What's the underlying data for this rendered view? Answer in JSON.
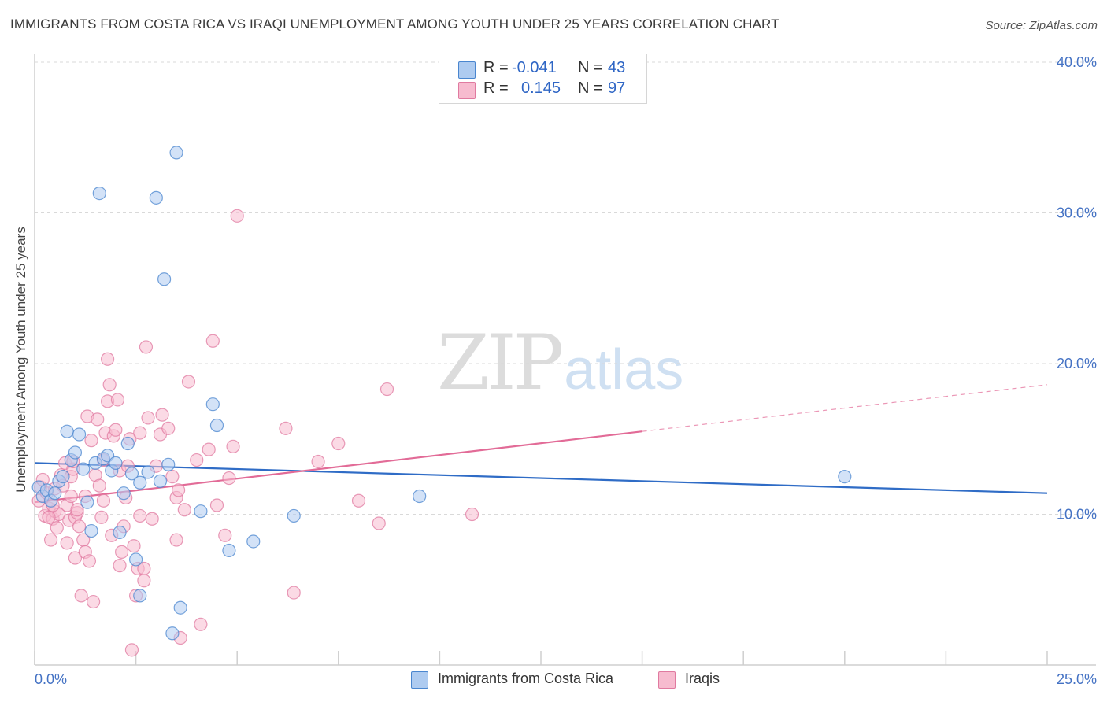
{
  "title": "IMMIGRANTS FROM COSTA RICA VS IRAQI UNEMPLOYMENT AMONG YOUTH UNDER 25 YEARS CORRELATION CHART",
  "source": "Source: ZipAtlas.com",
  "watermark": {
    "zip": "ZIP",
    "atlas": "atlas"
  },
  "colors": {
    "blue_fill": "#aecbf0",
    "blue_stroke": "#4a86cf",
    "blue_line": "#2f6cc6",
    "pink_fill": "#f7bbcf",
    "pink_stroke": "#e07aa0",
    "pink_line": "#e26b97",
    "axis_text": "#4472c4"
  },
  "legend": {
    "rows": [
      {
        "r_label": "R =",
        "r_value": "-0.041",
        "n_label": "N =",
        "n_value": "43"
      },
      {
        "r_label": "R =",
        "r_value": "0.145",
        "n_label": "N =",
        "n_value": "97"
      }
    ]
  },
  "bottom_legend": {
    "series1": "Immigrants from Costa Rica",
    "series2": "Iraqis"
  },
  "chart_data": {
    "type": "scatter",
    "title": "IMMIGRANTS FROM COSTA RICA VS IRAQI UNEMPLOYMENT AMONG YOUTH UNDER 25 YEARS CORRELATION CHART",
    "xlabel": "",
    "ylabel": "Unemployment Among Youth under 25 years",
    "xlim": [
      0,
      25
    ],
    "ylim": [
      0,
      40
    ],
    "x_tick_labels": [
      "0.0%",
      "25.0%"
    ],
    "y_ticks": [
      10,
      20,
      30,
      40
    ],
    "y_tick_labels": [
      "10.0%",
      "20.0%",
      "30.0%",
      "40.0%"
    ],
    "grid": "horizontal dashed",
    "legend_position": "top-center",
    "series": [
      {
        "name": "Immigrants from Costa Rica",
        "color": "#aecbf0",
        "r": -0.041,
        "n": 43,
        "trend": {
          "x0": 0,
          "y0": 13.4,
          "x1": 25,
          "y1": 11.4
        },
        "points": [
          [
            0.1,
            11.8
          ],
          [
            0.2,
            11.2
          ],
          [
            0.3,
            11.6
          ],
          [
            0.4,
            10.9
          ],
          [
            0.5,
            11.4
          ],
          [
            0.6,
            12.2
          ],
          [
            0.7,
            12.5
          ],
          [
            0.8,
            15.5
          ],
          [
            0.9,
            13.6
          ],
          [
            1.0,
            14.1
          ],
          [
            1.1,
            15.3
          ],
          [
            1.2,
            13.0
          ],
          [
            1.3,
            10.8
          ],
          [
            1.4,
            8.9
          ],
          [
            1.5,
            13.4
          ],
          [
            1.6,
            31.3
          ],
          [
            1.7,
            13.7
          ],
          [
            1.8,
            13.9
          ],
          [
            1.9,
            12.9
          ],
          [
            2.0,
            13.4
          ],
          [
            2.1,
            8.8
          ],
          [
            2.2,
            11.4
          ],
          [
            2.3,
            14.7
          ],
          [
            2.4,
            12.7
          ],
          [
            2.5,
            7.0
          ],
          [
            2.6,
            4.6
          ],
          [
            2.6,
            12.1
          ],
          [
            2.8,
            12.8
          ],
          [
            3.0,
            31.0
          ],
          [
            3.2,
            25.6
          ],
          [
            3.3,
            13.3
          ],
          [
            3.4,
            2.1
          ],
          [
            3.5,
            34.0
          ],
          [
            3.6,
            3.8
          ],
          [
            4.1,
            10.2
          ],
          [
            4.4,
            17.3
          ],
          [
            4.5,
            15.9
          ],
          [
            4.8,
            7.6
          ],
          [
            5.4,
            8.2
          ],
          [
            6.4,
            9.9
          ],
          [
            9.5,
            11.2
          ],
          [
            20.0,
            12.5
          ],
          [
            3.1,
            12.2
          ]
        ]
      },
      {
        "name": "Iraqis",
        "color": "#f7bbcf",
        "r": 0.145,
        "n": 97,
        "trend": {
          "x0": 0,
          "y0": 10.8,
          "x1": 15,
          "y1": 15.5,
          "dash_x1": 25,
          "dash_y1": 18.6
        },
        "points": [
          [
            0.1,
            10.9
          ],
          [
            0.15,
            11.8
          ],
          [
            0.2,
            12.3
          ],
          [
            0.25,
            9.9
          ],
          [
            0.3,
            11.4
          ],
          [
            0.35,
            10.4
          ],
          [
            0.4,
            8.3
          ],
          [
            0.45,
            9.7
          ],
          [
            0.5,
            10.2
          ],
          [
            0.5,
            11.7
          ],
          [
            0.55,
            9.1
          ],
          [
            0.6,
            10.0
          ],
          [
            0.65,
            12.6
          ],
          [
            0.7,
            11.9
          ],
          [
            0.75,
            13.4
          ],
          [
            0.8,
            8.1
          ],
          [
            0.8,
            10.6
          ],
          [
            0.85,
            9.6
          ],
          [
            0.9,
            12.5
          ],
          [
            0.9,
            11.2
          ],
          [
            0.95,
            13.0
          ],
          [
            1.0,
            9.8
          ],
          [
            1.0,
            7.1
          ],
          [
            1.05,
            10.1
          ],
          [
            1.1,
            9.2
          ],
          [
            1.15,
            4.6
          ],
          [
            1.2,
            8.3
          ],
          [
            1.25,
            11.2
          ],
          [
            1.25,
            7.5
          ],
          [
            1.3,
            16.5
          ],
          [
            1.35,
            6.9
          ],
          [
            1.4,
            14.9
          ],
          [
            1.45,
            4.2
          ],
          [
            1.5,
            12.6
          ],
          [
            1.55,
            16.3
          ],
          [
            1.6,
            11.9
          ],
          [
            1.65,
            9.8
          ],
          [
            1.7,
            13.6
          ],
          [
            1.7,
            10.9
          ],
          [
            1.75,
            15.4
          ],
          [
            1.8,
            20.3
          ],
          [
            1.8,
            17.5
          ],
          [
            1.85,
            18.6
          ],
          [
            1.9,
            8.6
          ],
          [
            1.95,
            15.2
          ],
          [
            2.0,
            15.6
          ],
          [
            2.05,
            17.6
          ],
          [
            2.1,
            12.9
          ],
          [
            2.1,
            6.6
          ],
          [
            2.15,
            7.5
          ],
          [
            2.2,
            9.2
          ],
          [
            2.25,
            11.1
          ],
          [
            2.3,
            13.2
          ],
          [
            2.35,
            15.0
          ],
          [
            2.4,
            1.0
          ],
          [
            2.45,
            7.9
          ],
          [
            2.5,
            4.6
          ],
          [
            2.55,
            6.4
          ],
          [
            2.6,
            9.9
          ],
          [
            2.6,
            15.4
          ],
          [
            2.7,
            5.6
          ],
          [
            2.7,
            6.4
          ],
          [
            2.75,
            21.1
          ],
          [
            2.8,
            16.4
          ],
          [
            2.9,
            9.7
          ],
          [
            3.0,
            13.2
          ],
          [
            3.1,
            15.3
          ],
          [
            3.15,
            16.6
          ],
          [
            3.3,
            15.7
          ],
          [
            3.4,
            12.5
          ],
          [
            3.5,
            11.1
          ],
          [
            3.5,
            8.3
          ],
          [
            3.55,
            11.6
          ],
          [
            3.6,
            1.8
          ],
          [
            3.7,
            10.3
          ],
          [
            3.8,
            18.8
          ],
          [
            4.0,
            13.6
          ],
          [
            4.1,
            2.7
          ],
          [
            4.3,
            14.3
          ],
          [
            4.4,
            21.5
          ],
          [
            4.5,
            10.6
          ],
          [
            4.7,
            8.6
          ],
          [
            4.8,
            12.4
          ],
          [
            4.9,
            14.5
          ],
          [
            5.0,
            29.8
          ],
          [
            6.2,
            15.7
          ],
          [
            6.4,
            4.8
          ],
          [
            7.0,
            13.5
          ],
          [
            7.5,
            14.7
          ],
          [
            8.0,
            10.9
          ],
          [
            8.5,
            9.4
          ],
          [
            8.7,
            18.3
          ],
          [
            10.8,
            10.0
          ],
          [
            1.05,
            10.3
          ],
          [
            0.95,
            13.5
          ],
          [
            0.35,
            9.8
          ],
          [
            0.45,
            10.6
          ]
        ]
      }
    ]
  }
}
